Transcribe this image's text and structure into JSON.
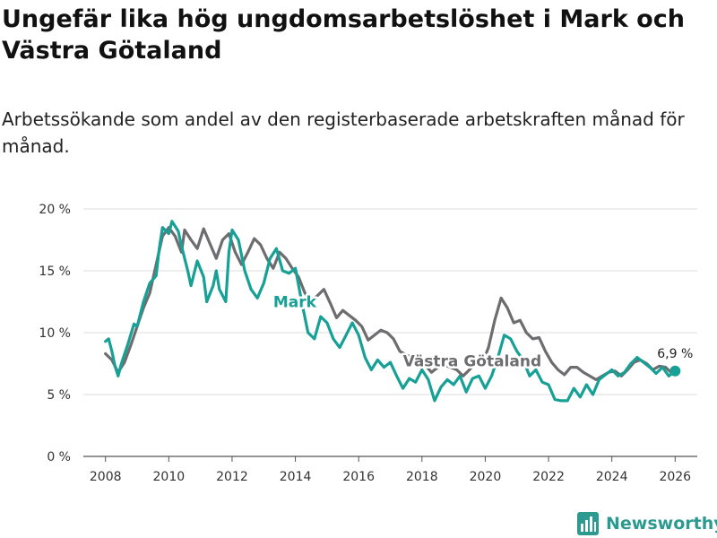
{
  "header": {
    "title": "Ungefär lika hög ungdomsarbetslöshet i Mark och Västra Götaland",
    "subtitle": "Arbetssökande som andel av den registerbaserade arbetskraften månad för månad."
  },
  "brand": {
    "name": "Newsworthy",
    "icon": "bar-chart-icon"
  },
  "colors": {
    "mark": "#17a096",
    "vastra_gotaland": "#6d6d70",
    "grid": "#dddddd"
  },
  "chart_data": {
    "type": "line",
    "title": "Ungefär lika hög ungdomsarbetslöshet i Mark och Västra Götaland",
    "xlabel": "",
    "ylabel": "",
    "xlim": [
      2007.3,
      2026.7
    ],
    "ylim": [
      0,
      20
    ],
    "xticks": [
      2008,
      2010,
      2012,
      2014,
      2016,
      2018,
      2020,
      2022,
      2024,
      2026
    ],
    "yticks": [
      0,
      5,
      10,
      15,
      20
    ],
    "ytick_labels": [
      "0 %",
      "5 %",
      "10 %",
      "15 %",
      "20 %"
    ],
    "grid": true,
    "end_annotation": "6,9 %",
    "series": [
      {
        "name": "Västra Götaland",
        "label": "Västra Götaland",
        "key": "vastra_gotaland",
        "points": [
          [
            2008.0,
            8.3
          ],
          [
            2008.2,
            7.8
          ],
          [
            2008.4,
            6.8
          ],
          [
            2008.6,
            7.6
          ],
          [
            2008.8,
            9.0
          ],
          [
            2009.0,
            10.5
          ],
          [
            2009.2,
            12.0
          ],
          [
            2009.4,
            13.2
          ],
          [
            2009.6,
            15.5
          ],
          [
            2009.8,
            17.8
          ],
          [
            2010.0,
            18.5
          ],
          [
            2010.2,
            17.8
          ],
          [
            2010.4,
            16.5
          ],
          [
            2010.5,
            18.3
          ],
          [
            2010.7,
            17.5
          ],
          [
            2010.9,
            16.8
          ],
          [
            2011.1,
            18.4
          ],
          [
            2011.3,
            17.2
          ],
          [
            2011.5,
            16.0
          ],
          [
            2011.7,
            17.5
          ],
          [
            2011.9,
            18.0
          ],
          [
            2012.1,
            16.5
          ],
          [
            2012.3,
            15.5
          ],
          [
            2012.5,
            16.5
          ],
          [
            2012.7,
            17.6
          ],
          [
            2012.9,
            17.1
          ],
          [
            2013.1,
            16.0
          ],
          [
            2013.3,
            15.2
          ],
          [
            2013.5,
            16.5
          ],
          [
            2013.7,
            16.0
          ],
          [
            2013.9,
            15.2
          ],
          [
            2014.1,
            14.5
          ],
          [
            2014.3,
            13.2
          ],
          [
            2014.5,
            12.5
          ],
          [
            2014.7,
            13.0
          ],
          [
            2014.9,
            13.5
          ],
          [
            2015.1,
            12.4
          ],
          [
            2015.3,
            11.2
          ],
          [
            2015.5,
            11.8
          ],
          [
            2015.7,
            11.4
          ],
          [
            2015.9,
            11.0
          ],
          [
            2016.1,
            10.5
          ],
          [
            2016.3,
            9.4
          ],
          [
            2016.5,
            9.8
          ],
          [
            2016.7,
            10.2
          ],
          [
            2016.9,
            10.0
          ],
          [
            2017.1,
            9.5
          ],
          [
            2017.3,
            8.5
          ],
          [
            2017.5,
            8.2
          ],
          [
            2017.7,
            8.0
          ],
          [
            2017.9,
            7.9
          ],
          [
            2018.1,
            7.4
          ],
          [
            2018.3,
            6.8
          ],
          [
            2018.5,
            7.2
          ],
          [
            2018.7,
            7.4
          ],
          [
            2018.9,
            7.2
          ],
          [
            2019.1,
            7.0
          ],
          [
            2019.3,
            6.5
          ],
          [
            2019.5,
            7.0
          ],
          [
            2019.7,
            7.6
          ],
          [
            2019.9,
            7.5
          ],
          [
            2020.1,
            8.8
          ],
          [
            2020.3,
            11.0
          ],
          [
            2020.5,
            12.8
          ],
          [
            2020.7,
            12.0
          ],
          [
            2020.9,
            10.8
          ],
          [
            2021.1,
            11.0
          ],
          [
            2021.3,
            10.0
          ],
          [
            2021.5,
            9.5
          ],
          [
            2021.7,
            9.6
          ],
          [
            2021.9,
            8.5
          ],
          [
            2022.1,
            7.6
          ],
          [
            2022.3,
            7.0
          ],
          [
            2022.5,
            6.6
          ],
          [
            2022.7,
            7.2
          ],
          [
            2022.9,
            7.2
          ],
          [
            2023.1,
            6.8
          ],
          [
            2023.3,
            6.5
          ],
          [
            2023.5,
            6.2
          ],
          [
            2023.7,
            6.5
          ],
          [
            2023.9,
            6.8
          ],
          [
            2024.1,
            6.9
          ],
          [
            2024.3,
            6.5
          ],
          [
            2024.5,
            7.0
          ],
          [
            2024.7,
            7.6
          ],
          [
            2024.9,
            7.8
          ],
          [
            2025.1,
            7.5
          ],
          [
            2025.3,
            7.0
          ],
          [
            2025.5,
            7.3
          ],
          [
            2025.7,
            7.2
          ],
          [
            2025.9,
            6.7
          ],
          [
            2026.0,
            6.8
          ]
        ]
      },
      {
        "name": "Mark",
        "label": "Mark",
        "key": "mark",
        "points": [
          [
            2008.0,
            9.3
          ],
          [
            2008.1,
            9.5
          ],
          [
            2008.2,
            8.5
          ],
          [
            2008.3,
            7.3
          ],
          [
            2008.4,
            6.5
          ],
          [
            2008.5,
            7.5
          ],
          [
            2008.7,
            9.0
          ],
          [
            2008.9,
            10.7
          ],
          [
            2009.0,
            10.5
          ],
          [
            2009.2,
            12.5
          ],
          [
            2009.4,
            14.0
          ],
          [
            2009.6,
            14.6
          ],
          [
            2009.7,
            16.8
          ],
          [
            2009.8,
            18.5
          ],
          [
            2010.0,
            18.0
          ],
          [
            2010.1,
            19.0
          ],
          [
            2010.3,
            18.2
          ],
          [
            2010.4,
            17.0
          ],
          [
            2010.6,
            15.0
          ],
          [
            2010.7,
            13.8
          ],
          [
            2010.9,
            15.8
          ],
          [
            2011.1,
            14.5
          ],
          [
            2011.2,
            12.5
          ],
          [
            2011.4,
            13.8
          ],
          [
            2011.5,
            15.0
          ],
          [
            2011.6,
            13.5
          ],
          [
            2011.8,
            12.5
          ],
          [
            2011.9,
            16.5
          ],
          [
            2012.0,
            18.3
          ],
          [
            2012.2,
            17.5
          ],
          [
            2012.4,
            15.0
          ],
          [
            2012.6,
            13.5
          ],
          [
            2012.8,
            12.8
          ],
          [
            2013.0,
            14.0
          ],
          [
            2013.2,
            16.0
          ],
          [
            2013.4,
            16.8
          ],
          [
            2013.6,
            15.0
          ],
          [
            2013.8,
            14.8
          ],
          [
            2014.0,
            15.2
          ],
          [
            2014.2,
            12.5
          ],
          [
            2014.4,
            10.0
          ],
          [
            2014.6,
            9.5
          ],
          [
            2014.8,
            11.3
          ],
          [
            2015.0,
            10.8
          ],
          [
            2015.2,
            9.5
          ],
          [
            2015.4,
            8.8
          ],
          [
            2015.6,
            9.8
          ],
          [
            2015.8,
            10.8
          ],
          [
            2016.0,
            9.8
          ],
          [
            2016.2,
            8.0
          ],
          [
            2016.4,
            7.0
          ],
          [
            2016.6,
            7.8
          ],
          [
            2016.8,
            7.2
          ],
          [
            2017.0,
            7.6
          ],
          [
            2017.2,
            6.5
          ],
          [
            2017.4,
            5.5
          ],
          [
            2017.6,
            6.3
          ],
          [
            2017.8,
            6.0
          ],
          [
            2018.0,
            7.0
          ],
          [
            2018.2,
            6.2
          ],
          [
            2018.4,
            4.5
          ],
          [
            2018.6,
            5.6
          ],
          [
            2018.8,
            6.2
          ],
          [
            2019.0,
            5.8
          ],
          [
            2019.2,
            6.5
          ],
          [
            2019.4,
            5.2
          ],
          [
            2019.6,
            6.3
          ],
          [
            2019.8,
            6.5
          ],
          [
            2020.0,
            5.5
          ],
          [
            2020.2,
            6.5
          ],
          [
            2020.4,
            8.0
          ],
          [
            2020.6,
            9.8
          ],
          [
            2020.8,
            9.5
          ],
          [
            2021.0,
            8.5
          ],
          [
            2021.2,
            7.8
          ],
          [
            2021.4,
            6.5
          ],
          [
            2021.6,
            7.0
          ],
          [
            2021.8,
            6.0
          ],
          [
            2022.0,
            5.8
          ],
          [
            2022.2,
            4.6
          ],
          [
            2022.4,
            4.5
          ],
          [
            2022.6,
            4.5
          ],
          [
            2022.8,
            5.5
          ],
          [
            2023.0,
            4.8
          ],
          [
            2023.2,
            5.8
          ],
          [
            2023.4,
            5.0
          ],
          [
            2023.6,
            6.2
          ],
          [
            2023.8,
            6.6
          ],
          [
            2024.0,
            7.0
          ],
          [
            2024.2,
            6.5
          ],
          [
            2024.4,
            6.8
          ],
          [
            2024.6,
            7.5
          ],
          [
            2024.8,
            8.0
          ],
          [
            2025.0,
            7.6
          ],
          [
            2025.2,
            7.2
          ],
          [
            2025.4,
            6.7
          ],
          [
            2025.6,
            7.2
          ],
          [
            2025.8,
            6.5
          ],
          [
            2026.0,
            6.9
          ]
        ]
      }
    ]
  }
}
